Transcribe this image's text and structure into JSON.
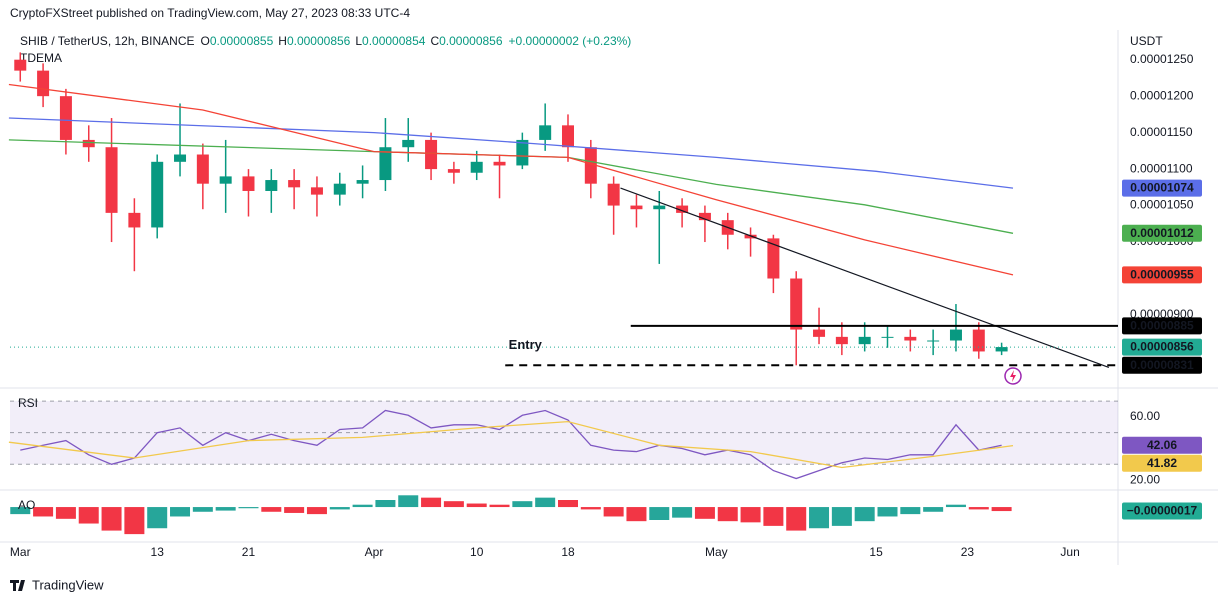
{
  "header": {
    "published": "CryptoFXStreet published on TradingView.com, May 27, 2023 08:33 UTC-4",
    "footer": "TradingView"
  },
  "chart_data": [
    {
      "type": "candlestick",
      "title": "SHIB / TetherUS, 12h, BINANCE",
      "indicator": "TDEMA",
      "axis_unit": "USDT",
      "ohlc": [
        {
          "key": "O",
          "value": "0.00000855"
        },
        {
          "key": "H",
          "value": "0.00000856"
        },
        {
          "key": "L",
          "value": "0.00000854"
        },
        {
          "key": "C",
          "value": "0.00000856"
        }
      ],
      "change": "+0.00000002 (+0.23%)",
      "up_color": "#089981",
      "down_color": "#f23645",
      "x": [
        0,
        2,
        4,
        6,
        8,
        10,
        12,
        14,
        16,
        18,
        20,
        22,
        24,
        26,
        28,
        30,
        32,
        34,
        36,
        38,
        40,
        42,
        44,
        46,
        48,
        50,
        52,
        54,
        56,
        58,
        60,
        62,
        64,
        66,
        68,
        70,
        72,
        74,
        76,
        78,
        80,
        82,
        84,
        86
      ],
      "open": [
        1.25e-05,
        1.235e-05,
        1.2e-05,
        1.14e-05,
        1.13e-05,
        1.04e-05,
        1.02e-05,
        1.11e-05,
        1.12e-05,
        1.08e-05,
        1.09e-05,
        1.07e-05,
        1.085e-05,
        1.075e-05,
        1.065e-05,
        1.08e-05,
        1.085e-05,
        1.13e-05,
        1.14e-05,
        1.1e-05,
        1.095e-05,
        1.11e-05,
        1.105e-05,
        1.14e-05,
        1.16e-05,
        1.13e-05,
        1.08e-05,
        1.05e-05,
        1.045e-05,
        1.05e-05,
        1.04e-05,
        1.03e-05,
        1.01e-05,
        1.005e-05,
        9.5e-06,
        8.8e-06,
        8.7e-06,
        8.6e-06,
        8.7e-06,
        8.7e-06,
        8.65e-06,
        8.65e-06,
        8.8e-06,
        8.5e-06
      ],
      "high": [
        1.26e-05,
        1.245e-05,
        1.21e-05,
        1.16e-05,
        1.17e-05,
        1.06e-05,
        1.12e-05,
        1.19e-05,
        1.135e-05,
        1.14e-05,
        1.1e-05,
        1.1e-05,
        1.1e-05,
        1.09e-05,
        1.095e-05,
        1.105e-05,
        1.17e-05,
        1.17e-05,
        1.15e-05,
        1.11e-05,
        1.125e-05,
        1.12e-05,
        1.15e-05,
        1.19e-05,
        1.175e-05,
        1.14e-05,
        1.09e-05,
        1.065e-05,
        1.07e-05,
        1.06e-05,
        1.05e-05,
        1.04e-05,
        1.02e-05,
        1.01e-05,
        9.6e-06,
        9.1e-06,
        8.9e-06,
        8.9e-06,
        8.85e-06,
        8.8e-06,
        8.8e-06,
        9.15e-06,
        8.9e-06,
        8.62e-06
      ],
      "low": [
        1.22e-05,
        1.185e-05,
        1.12e-05,
        1.11e-05,
        1e-05,
        9.6e-06,
        1.005e-05,
        1.09e-05,
        1.045e-05,
        1.04e-05,
        1.035e-05,
        1.04e-05,
        1.045e-05,
        1.035e-05,
        1.05e-05,
        1.06e-05,
        1.07e-05,
        1.11e-05,
        1.085e-05,
        1.08e-05,
        1.085e-05,
        1.06e-05,
        1.1e-05,
        1.125e-05,
        1.11e-05,
        1.06e-05,
        1.01e-05,
        1.02e-05,
        9.7e-06,
        1.02e-05,
        1e-05,
        9.9e-06,
        9.8e-06,
        9.3e-06,
        8.31e-06,
        8.6e-06,
        8.45e-06,
        8.5e-06,
        8.55e-06,
        8.5e-06,
        8.45e-06,
        8.5e-06,
        8.4e-06,
        8.45e-06
      ],
      "close": [
        1.235e-05,
        1.2e-05,
        1.14e-05,
        1.13e-05,
        1.04e-05,
        1.02e-05,
        1.11e-05,
        1.12e-05,
        1.08e-05,
        1.09e-05,
        1.07e-05,
        1.085e-05,
        1.075e-05,
        1.065e-05,
        1.08e-05,
        1.085e-05,
        1.13e-05,
        1.14e-05,
        1.1e-05,
        1.095e-05,
        1.11e-05,
        1.105e-05,
        1.14e-05,
        1.16e-05,
        1.13e-05,
        1.08e-05,
        1.05e-05,
        1.045e-05,
        1.05e-05,
        1.04e-05,
        1.03e-05,
        1.01e-05,
        1.005e-05,
        9.5e-06,
        8.8e-06,
        8.7e-06,
        8.6e-06,
        8.7e-06,
        8.7e-06,
        8.65e-06,
        8.65e-06,
        8.8e-06,
        8.5e-06,
        8.56e-06
      ],
      "series": [
        {
          "color": "#5b6ee8",
          "x": [
            -1,
            31,
            45,
            61,
            75,
            87
          ],
          "values": [
            1.17e-05,
            1.15e-05,
            1.135e-05,
            1.116e-05,
            1.097e-05,
            1.074e-05
          ],
          "value_labels": [
            null,
            null,
            null,
            null,
            null,
            "0.00001074"
          ]
        },
        {
          "color": "#4caf50",
          "x": [
            -1,
            31,
            48,
            61,
            74,
            87
          ],
          "values": [
            1.14e-05,
            1.124e-05,
            1.116e-05,
            1.079e-05,
            1.051e-05,
            1.012e-05
          ],
          "value_labels": [
            null,
            null,
            null,
            null,
            null,
            "0.00001012"
          ]
        },
        {
          "color": "#f44336",
          "x": [
            -1,
            16,
            31,
            48,
            61,
            74,
            87
          ],
          "values": [
            1.216e-05,
            1.181e-05,
            1.124e-05,
            1.116e-05,
            1.058e-05,
            1.003e-05,
            9.55e-06
          ],
          "value_labels": [
            null,
            null,
            null,
            null,
            null,
            null,
            "0.00000955"
          ]
        }
      ],
      "levels": [
        {
          "value": 8.85e-06,
          "label": "0.00000885",
          "from": 53.5,
          "style": "solid"
        },
        {
          "value": 8.31e-06,
          "label": "0.00000831",
          "from": 42.5,
          "style": "dashed"
        }
      ],
      "trendline": {
        "x": [
          52.6,
          95.4
        ],
        "values": [
          1.074e-05,
          8.28e-06
        ]
      },
      "last_price": {
        "value": 8.56e-06,
        "label": "0.00000856",
        "color": "#22ab94"
      },
      "annotation": {
        "text": "Entry",
        "x": 42.8,
        "y": 8.58e-06,
        "color": "#43a047"
      },
      "xlim": [
        -0.9,
        96.2
      ],
      "ylim": [
        8.04e-06,
        1.277e-05
      ],
      "xticks": [
        {
          "value": 0,
          "label": "Mar"
        },
        {
          "value": 12,
          "label": "13"
        },
        {
          "value": 20,
          "label": "21"
        },
        {
          "value": 31,
          "label": "Apr"
        },
        {
          "value": 40,
          "label": "10"
        },
        {
          "value": 48,
          "label": "18"
        },
        {
          "value": 61,
          "label": "May"
        },
        {
          "value": 75,
          "label": "15"
        },
        {
          "value": 83,
          "label": "23"
        },
        {
          "value": 92,
          "label": "Jun"
        }
      ],
      "yticks": [
        {
          "value": 1.25e-05,
          "label": "0.00001250"
        },
        {
          "value": 1.2e-05,
          "label": "0.00001200"
        },
        {
          "value": 1.15e-05,
          "label": "0.00001150"
        },
        {
          "value": 1.1e-05,
          "label": "0.00001100"
        },
        {
          "value": 1.05e-05,
          "label": "0.00001050"
        },
        {
          "value": 1e-05,
          "label": "0.00001000"
        },
        {
          "value": 9e-06,
          "label": "0.00000900"
        }
      ],
      "grid": false
    },
    {
      "type": "line",
      "title": "RSI",
      "series": [
        {
          "color": "#7e57c2",
          "x": [
            0,
            2,
            4,
            6,
            8,
            10,
            12,
            14,
            16,
            18,
            20,
            22,
            24,
            26,
            28,
            30,
            32,
            34,
            36,
            38,
            40,
            42,
            44,
            46,
            48,
            50,
            52,
            54,
            56,
            58,
            60,
            62,
            64,
            66,
            68,
            70,
            72,
            74,
            76,
            78,
            80,
            82,
            84,
            86
          ],
          "values": [
            39,
            42,
            45,
            36,
            30,
            34,
            50,
            53,
            42,
            50,
            45,
            49,
            45,
            42,
            52,
            53,
            64,
            61,
            53,
            55,
            55,
            52,
            61,
            64,
            58,
            42,
            39,
            38,
            42,
            40,
            36,
            39,
            36,
            26,
            21,
            26,
            31,
            34,
            33,
            36,
            36,
            55,
            39,
            42.06
          ],
          "value_labels": [
            null,
            null,
            null,
            null,
            null,
            null,
            null,
            null,
            null,
            null,
            null,
            null,
            null,
            null,
            null,
            null,
            null,
            null,
            null,
            null,
            null,
            null,
            null,
            null,
            null,
            null,
            null,
            null,
            null,
            null,
            null,
            null,
            null,
            null,
            null,
            null,
            null,
            null,
            null,
            null,
            null,
            null,
            null,
            "42.06"
          ]
        },
        {
          "color": "#f2c94c",
          "x": [
            -1,
            10,
            20,
            30,
            40,
            48,
            56,
            64,
            72,
            80,
            87
          ],
          "values": [
            44,
            34,
            45,
            47,
            53,
            57,
            42,
            38,
            28,
            35,
            41.82
          ],
          "value_labels": [
            null,
            null,
            null,
            null,
            null,
            null,
            null,
            null,
            null,
            null,
            "41.82"
          ]
        }
      ],
      "bands": [
        70,
        50,
        30
      ],
      "band_color": "#7e57c2",
      "xlim": [
        -0.9,
        96.2
      ],
      "ylim": [
        15,
        77
      ],
      "yticks": [
        {
          "value": 60,
          "label": "60.00"
        },
        {
          "value": 20,
          "label": "20.00"
        }
      ],
      "grid": false
    },
    {
      "type": "bar",
      "title": "AO",
      "up_color": "#26a69a",
      "down_color": "#f23645",
      "tag_color": "#22ab94",
      "x": [
        0,
        2,
        4,
        6,
        8,
        10,
        12,
        14,
        16,
        18,
        20,
        22,
        24,
        26,
        28,
        30,
        32,
        34,
        36,
        38,
        40,
        42,
        44,
        46,
        48,
        50,
        52,
        54,
        56,
        58,
        60,
        62,
        64,
        66,
        68,
        70,
        72,
        74,
        76,
        78,
        80,
        82,
        84,
        86
      ],
      "values": [
        -3e-07,
        -4e-07,
        -5e-07,
        -7e-07,
        -1e-06,
        -1.15e-06,
        -9e-07,
        -4e-07,
        -2e-07,
        -1.5e-07,
        -5e-08,
        -2e-07,
        -2.5e-07,
        -3e-07,
        -1e-07,
        1e-07,
        3e-07,
        5e-07,
        4e-07,
        2.5e-07,
        1.5e-07,
        1e-07,
        2.5e-07,
        4e-07,
        3e-07,
        -1e-07,
        -4e-07,
        -6e-07,
        -5.5e-07,
        -4.5e-07,
        -5e-07,
        -6e-07,
        -6.5e-07,
        -8e-07,
        -1e-06,
        -9e-07,
        -8e-07,
        -6e-07,
        -4e-07,
        -3e-07,
        -2e-07,
        1e-07,
        -1e-07,
        -1.7e-07
      ],
      "value_labels": [
        null,
        null,
        null,
        null,
        null,
        null,
        null,
        null,
        null,
        null,
        null,
        null,
        null,
        null,
        null,
        null,
        null,
        null,
        null,
        null,
        null,
        null,
        null,
        null,
        null,
        null,
        null,
        null,
        null,
        null,
        null,
        null,
        null,
        null,
        null,
        null,
        null,
        null,
        null,
        null,
        null,
        null,
        null,
        "−0.00000017"
      ],
      "xlim": [
        -0.9,
        96.2
      ],
      "ylim": [
        -1.4e-06,
        6.4e-07
      ],
      "grid": false
    }
  ]
}
